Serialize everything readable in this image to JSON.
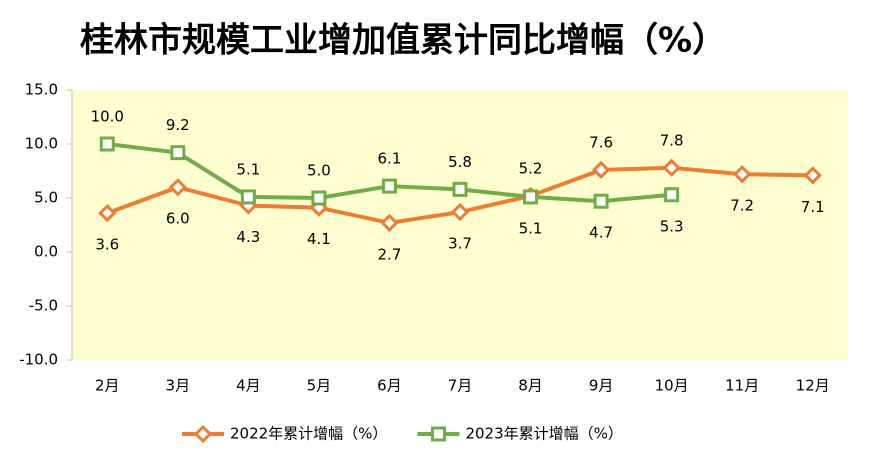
{
  "chart_data": {
    "type": "line",
    "title": "桂林市规模工业增加值累计同比增幅（%）",
    "categories": [
      "2月",
      "3月",
      "4月",
      "5月",
      "6月",
      "7月",
      "8月",
      "9月",
      "10月",
      "11月",
      "12月"
    ],
    "series": [
      {
        "name": "2022年累计增幅（%）",
        "color": "#ed7d31",
        "marker": "diamond",
        "values": [
          3.6,
          6,
          4.3,
          4.1,
          2.7,
          3.7,
          5.2,
          7.6,
          7.8,
          7.2,
          7.1
        ],
        "value_labels": [
          "3.6",
          "6.0",
          "4.3",
          "4.1",
          "2.7",
          "3.7",
          "5.2",
          "7.6",
          "7.8",
          "7.2",
          "7.1"
        ]
      },
      {
        "name": "2023年累计增幅（%）",
        "color": "#70ad47",
        "marker": "square",
        "values": [
          10,
          9.2,
          5.1,
          5,
          6.1,
          5.8,
          5.1,
          4.7,
          5.3,
          null,
          null
        ],
        "value_labels": [
          "10.0",
          "9.2",
          "5.1",
          "5.0",
          "6.1",
          "5.8",
          "5.1",
          "4.7",
          "5.3",
          null,
          null
        ]
      }
    ],
    "ylim": [
      -10,
      15
    ],
    "yticks": [
      {
        "value": -10,
        "label": "-10.0"
      },
      {
        "value": -5,
        "label": "-5.0"
      },
      {
        "value": 0,
        "label": "0.0"
      },
      {
        "value": 5,
        "label": "5.0"
      },
      {
        "value": 10,
        "label": "10.0"
      },
      {
        "value": 15,
        "label": "15.0"
      }
    ],
    "legend": "bottom",
    "plot_background": "#fefed0"
  }
}
